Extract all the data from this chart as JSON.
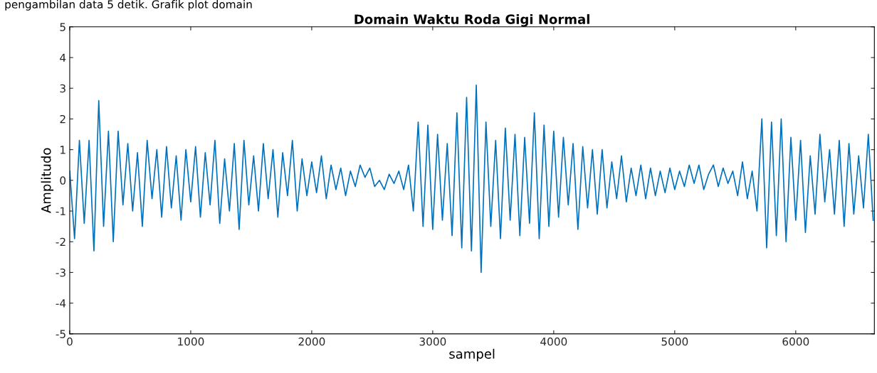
{
  "chart_data": {
    "type": "line",
    "title": "Domain Waktu Roda Gigi Normal",
    "xlabel": "sampel",
    "ylabel": "Amplitudo",
    "annotations": [
      "pengambilan data 5 detik. Grafik plot domain"
    ],
    "x": [
      0,
      40,
      80,
      120,
      160,
      200,
      240,
      280,
      320,
      360,
      400,
      440,
      480,
      520,
      560,
      600,
      640,
      680,
      720,
      760,
      800,
      840,
      880,
      920,
      960,
      1000,
      1040,
      1080,
      1120,
      1160,
      1200,
      1240,
      1280,
      1320,
      1360,
      1400,
      1440,
      1480,
      1520,
      1560,
      1600,
      1640,
      1680,
      1720,
      1760,
      1800,
      1840,
      1880,
      1920,
      1960,
      2000,
      2040,
      2080,
      2120,
      2160,
      2200,
      2240,
      2280,
      2320,
      2360,
      2400,
      2440,
      2480,
      2520,
      2560,
      2600,
      2640,
      2680,
      2720,
      2760,
      2800,
      2840,
      2880,
      2920,
      2960,
      3000,
      3040,
      3080,
      3120,
      3160,
      3200,
      3240,
      3280,
      3320,
      3360,
      3400,
      3440,
      3480,
      3520,
      3560,
      3600,
      3640,
      3680,
      3720,
      3760,
      3800,
      3840,
      3880,
      3920,
      3960,
      4000,
      4040,
      4080,
      4120,
      4160,
      4200,
      4240,
      4280,
      4320,
      4360,
      4400,
      4440,
      4480,
      4520,
      4560,
      4600,
      4640,
      4680,
      4720,
      4760,
      4800,
      4840,
      4880,
      4920,
      4960,
      5000,
      5040,
      5080,
      5120,
      5160,
      5200,
      5240,
      5280,
      5320,
      5360,
      5400,
      5440,
      5480,
      5520,
      5560,
      5600,
      5640,
      5680,
      5720,
      5760,
      5800,
      5840,
      5880,
      5920,
      5960,
      6000,
      6040,
      6080,
      6120,
      6160,
      6200,
      6240,
      6280,
      6320,
      6360,
      6400,
      6440,
      6480,
      6520,
      6560,
      6600,
      6640
    ],
    "series": [
      {
        "color": "#0072bd",
        "values": [
          0.3,
          -1.9,
          1.3,
          -1.4,
          1.3,
          -2.3,
          2.6,
          -1.5,
          1.6,
          -2.0,
          1.6,
          -0.8,
          1.2,
          -1.0,
          0.9,
          -1.5,
          1.3,
          -0.6,
          1.0,
          -1.2,
          1.1,
          -0.9,
          0.8,
          -1.3,
          1.0,
          -0.7,
          1.1,
          -1.2,
          0.9,
          -0.8,
          1.3,
          -1.4,
          0.7,
          -1.0,
          1.2,
          -1.6,
          1.3,
          -0.8,
          0.8,
          -1.0,
          1.2,
          -0.6,
          1.0,
          -1.2,
          0.9,
          -0.5,
          1.3,
          -1.0,
          0.7,
          -0.5,
          0.6,
          -0.4,
          0.8,
          -0.6,
          0.5,
          -0.3,
          0.4,
          -0.5,
          0.3,
          -0.2,
          0.5,
          0.1,
          0.4,
          -0.2,
          0.0,
          -0.3,
          0.2,
          -0.1,
          0.3,
          -0.3,
          0.5,
          -1.0,
          1.9,
          -1.5,
          1.8,
          -1.6,
          1.5,
          -1.3,
          1.2,
          -1.8,
          2.2,
          -2.2,
          2.7,
          -2.3,
          3.1,
          -3.0,
          1.9,
          -1.5,
          1.3,
          -1.9,
          1.7,
          -1.3,
          1.5,
          -1.8,
          1.4,
          -1.4,
          2.2,
          -1.9,
          1.8,
          -1.5,
          1.6,
          -1.2,
          1.4,
          -0.8,
          1.2,
          -1.6,
          1.1,
          -0.9,
          1.0,
          -1.1,
          1.0,
          -0.9,
          0.6,
          -0.6,
          0.8,
          -0.7,
          0.4,
          -0.5,
          0.5,
          -0.6,
          0.4,
          -0.5,
          0.3,
          -0.4,
          0.4,
          -0.3,
          0.3,
          -0.2,
          0.5,
          -0.1,
          0.5,
          -0.3,
          0.2,
          0.5,
          -0.2,
          0.4,
          -0.1,
          0.3,
          -0.5,
          0.6,
          -0.6,
          0.3,
          -1.0,
          2.0,
          -2.2,
          1.9,
          -1.8,
          2.0,
          -2.0,
          1.4,
          -1.3,
          1.3,
          -1.7,
          0.8,
          -1.1,
          1.5,
          -0.7,
          1.0,
          -1.1,
          1.3,
          -1.5,
          1.2,
          -1.1,
          0.8,
          -0.9,
          1.5,
          -1.3
        ]
      }
    ],
    "xlim": [
      0,
      6650
    ],
    "ylim": [
      -5,
      5
    ],
    "xticks": [
      0,
      1000,
      2000,
      3000,
      4000,
      5000,
      6000
    ],
    "yticks": [
      -5,
      -4,
      -3,
      -2,
      -1,
      0,
      1,
      2,
      3,
      4,
      5
    ],
    "grid": false,
    "legend": false,
    "marker": "none",
    "line_style": "solid"
  }
}
